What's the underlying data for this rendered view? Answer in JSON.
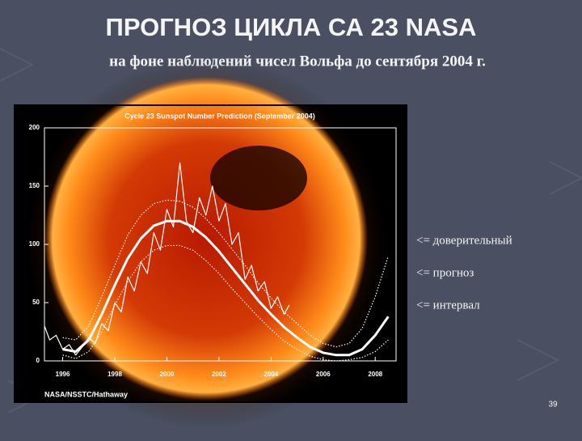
{
  "slide": {
    "title": "ПРОГНОЗ ЦИКЛА СА 23 NASA",
    "subtitle": "на фоне наблюдений чисел Вольфа до сентября 2004 г.",
    "annotations": [
      "<= доверительный",
      "<= прогноз",
      "<= интервал"
    ],
    "page_number": "39"
  },
  "chart_data": {
    "type": "line",
    "title": "Cycle 23 Sunspot Number Prediction (September 2004)",
    "source": "NASA/NSSTC/Hathaway",
    "xlim": [
      1995.3,
      2008.8
    ],
    "xticks": [
      1996,
      1998,
      2000,
      2002,
      2004,
      2006,
      2008
    ],
    "ylim": [
      0,
      200
    ],
    "yticks": [
      0,
      50,
      100,
      150,
      200
    ],
    "series": [
      {
        "color": "#ffffff",
        "width": 1.2,
        "dash": false,
        "x": [
          1995.3,
          1995.5,
          1995.75,
          1996,
          1996.25,
          1996.5,
          1996.75,
          1997,
          1997.25,
          1997.5,
          1997.75,
          1998,
          1998.25,
          1998.5,
          1998.75,
          1999,
          1999.25,
          1999.5,
          1999.75,
          2000,
          2000.25,
          2000.5,
          2000.75,
          2001,
          2001.25,
          2001.5,
          2001.75,
          2002,
          2002.25,
          2002.5,
          2002.75,
          2003,
          2003.25,
          2003.5,
          2003.75,
          2004,
          2004.25,
          2004.5,
          2004.7
        ],
        "values": [
          30,
          18,
          22,
          10,
          14,
          5,
          12,
          20,
          15,
          32,
          26,
          50,
          42,
          72,
          60,
          85,
          75,
          110,
          95,
          130,
          115,
          170,
          120,
          110,
          140,
          125,
          150,
          120,
          135,
          100,
          110,
          70,
          82,
          60,
          68,
          45,
          55,
          40,
          48
        ]
      },
      {
        "color": "#ffffff",
        "width": 3,
        "dash": false,
        "x": [
          1996,
          1996.5,
          1997,
          1997.5,
          1998,
          1998.5,
          1999,
          1999.5,
          2000,
          2000.5,
          2001,
          2001.5,
          2002,
          2002.5,
          2003,
          2003.5,
          2004,
          2004.5,
          2005,
          2005.5,
          2006,
          2006.5,
          2007,
          2007.5,
          2008,
          2008.5
        ],
        "values": [
          10,
          8,
          18,
          40,
          65,
          88,
          105,
          116,
          120,
          120,
          115,
          106,
          94,
          80,
          66,
          52,
          40,
          29,
          20,
          12,
          7,
          5,
          5,
          10,
          22,
          38
        ]
      },
      {
        "color": "#ffffff",
        "width": 1.2,
        "dash": true,
        "x": [
          1996,
          1996.5,
          1997,
          1997.5,
          1998,
          1998.5,
          1999,
          1999.5,
          2000,
          2000.5,
          2001,
          2001.5,
          2002,
          2002.5,
          2003,
          2003.5,
          2004,
          2004.5,
          2005,
          2005.5,
          2006,
          2006.5,
          2007,
          2007.5,
          2008,
          2008.5
        ],
        "values": [
          20,
          18,
          30,
          55,
          82,
          108,
          125,
          135,
          138,
          137,
          132,
          122,
          110,
          96,
          82,
          67,
          54,
          42,
          32,
          22,
          15,
          12,
          15,
          28,
          55,
          90
        ]
      },
      {
        "color": "#ffffff",
        "width": 1.2,
        "dash": true,
        "x": [
          1996,
          1996.5,
          1997,
          1997.5,
          1998,
          1998.5,
          1999,
          1999.5,
          2000,
          2000.5,
          2001,
          2001.5,
          2002,
          2002.5,
          2003,
          2003.5,
          2004,
          2004.5,
          2005,
          2005.5,
          2006,
          2006.5,
          2007,
          2007.5,
          2008,
          2008.5
        ],
        "values": [
          5,
          2,
          8,
          25,
          48,
          68,
          85,
          95,
          99,
          99,
          95,
          86,
          75,
          62,
          50,
          38,
          27,
          17,
          10,
          4,
          1,
          0,
          1,
          3,
          8,
          18
        ]
      }
    ]
  }
}
